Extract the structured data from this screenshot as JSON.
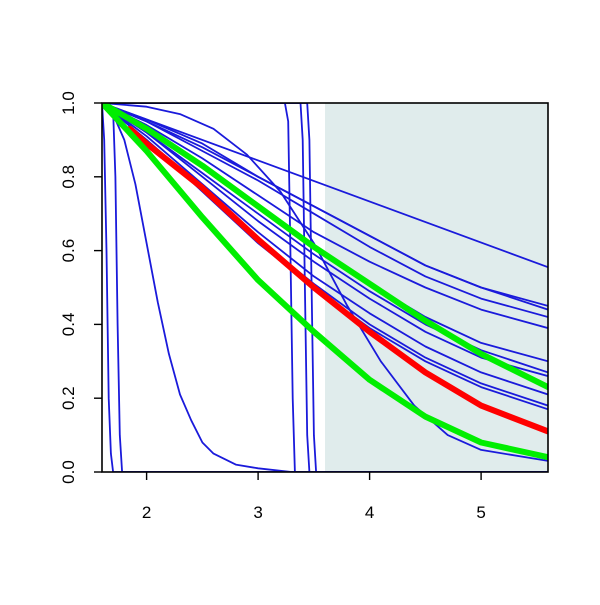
{
  "chart_data": {
    "type": "line",
    "title": "",
    "xlabel": "",
    "ylabel": "",
    "xlim": [
      1.6,
      5.6
    ],
    "ylim": [
      0.0,
      1.0
    ],
    "grid": false,
    "legend": "none",
    "x_ticks": [
      2,
      3,
      4,
      5
    ],
    "x_tick_labels": [
      "2",
      "3",
      "4",
      "5"
    ],
    "y_ticks": [
      0.0,
      0.2,
      0.4,
      0.6,
      0.8,
      1.0
    ],
    "y_tick_labels": [
      "0.0",
      "0.2",
      "0.4",
      "0.6",
      "0.8",
      "1.0"
    ],
    "shaded_region": {
      "x_from": 3.6,
      "x_to": 5.6,
      "color": "#e0ecec"
    },
    "colors": {
      "thin": "#1a1adb",
      "red": "#ff0000",
      "green": "#00ee00",
      "axis": "#000000"
    },
    "series": [
      {
        "color": "blue",
        "width": "thin",
        "x": [
          1.6,
          5.6
        ],
        "y": [
          1.0,
          0.555
        ]
      },
      {
        "color": "blue",
        "width": "thin",
        "x": [
          1.6,
          2.0,
          2.5,
          3.0,
          3.5,
          4.0,
          4.5,
          5.0,
          5.6
        ],
        "y": [
          1.0,
          0.955,
          0.89,
          0.8,
          0.72,
          0.64,
          0.56,
          0.5,
          0.44
        ]
      },
      {
        "color": "blue",
        "width": "thin",
        "x": [
          1.6,
          2.0,
          2.5,
          3.0,
          3.5,
          4.0,
          4.5,
          5.0,
          5.6
        ],
        "y": [
          1.0,
          0.95,
          0.88,
          0.8,
          0.72,
          0.64,
          0.56,
          0.5,
          0.45
        ]
      },
      {
        "color": "blue",
        "width": "thin",
        "x": [
          1.6,
          2.0,
          2.5,
          3.0,
          3.5,
          4.0,
          4.5,
          5.0,
          5.6
        ],
        "y": [
          1.0,
          0.95,
          0.87,
          0.79,
          0.7,
          0.61,
          0.53,
          0.47,
          0.42
        ]
      },
      {
        "color": "blue",
        "width": "thin",
        "x": [
          1.6,
          2.0,
          2.5,
          3.0,
          3.5,
          4.0,
          4.5,
          5.0,
          5.6
        ],
        "y": [
          1.0,
          0.94,
          0.85,
          0.75,
          0.65,
          0.57,
          0.5,
          0.44,
          0.39
        ]
      },
      {
        "color": "blue",
        "width": "thin",
        "x": [
          1.6,
          2.0,
          2.5,
          3.0,
          3.5,
          4.0,
          4.5,
          5.0,
          5.6
        ],
        "y": [
          1.0,
          0.93,
          0.83,
          0.72,
          0.61,
          0.51,
          0.42,
          0.35,
          0.3
        ]
      },
      {
        "color": "blue",
        "width": "thin",
        "x": [
          1.6,
          2.0,
          2.5,
          3.0,
          3.5,
          4.0,
          4.5,
          5.0,
          5.6
        ],
        "y": [
          1.0,
          0.92,
          0.81,
          0.7,
          0.59,
          0.49,
          0.4,
          0.33,
          0.27
        ]
      },
      {
        "color": "blue",
        "width": "thin",
        "x": [
          1.6,
          2.0,
          2.5,
          3.0,
          3.5,
          4.0,
          4.5,
          5.0,
          5.6
        ],
        "y": [
          1.0,
          0.92,
          0.8,
          0.68,
          0.57,
          0.47,
          0.38,
          0.31,
          0.26
        ]
      },
      {
        "color": "blue",
        "width": "thin",
        "x": [
          1.6,
          2.0,
          2.5,
          3.0,
          3.5,
          4.0,
          4.5,
          5.0,
          5.6
        ],
        "y": [
          1.0,
          0.91,
          0.78,
          0.65,
          0.53,
          0.43,
          0.34,
          0.27,
          0.21
        ]
      },
      {
        "color": "blue",
        "width": "thin",
        "x": [
          1.6,
          2.0,
          2.5,
          3.0,
          3.5,
          4.0,
          4.5,
          5.0,
          5.6
        ],
        "y": [
          1.0,
          0.9,
          0.77,
          0.63,
          0.51,
          0.4,
          0.31,
          0.24,
          0.18
        ]
      },
      {
        "color": "blue",
        "width": "thin",
        "x": [
          1.6,
          2.0,
          2.5,
          3.0,
          3.5,
          4.0,
          4.5,
          5.0,
          5.6
        ],
        "y": [
          1.0,
          0.9,
          0.76,
          0.62,
          0.5,
          0.39,
          0.3,
          0.23,
          0.17
        ]
      },
      {
        "color": "blue",
        "width": "thin",
        "x": [
          1.6,
          2.0,
          2.3,
          2.6,
          2.9,
          3.2,
          3.5,
          3.8,
          4.1,
          4.4,
          4.7,
          5.0,
          5.6
        ],
        "y": [
          1.0,
          0.99,
          0.97,
          0.93,
          0.86,
          0.76,
          0.62,
          0.45,
          0.3,
          0.18,
          0.1,
          0.06,
          0.03
        ]
      },
      {
        "color": "blue",
        "width": "thin",
        "x": [
          1.6,
          1.7,
          1.8,
          1.9,
          2.0,
          2.1,
          2.2,
          2.3,
          2.4,
          2.5,
          2.6,
          2.8,
          3.0,
          3.3,
          3.5,
          5.6
        ],
        "y": [
          1.0,
          0.97,
          0.9,
          0.78,
          0.62,
          0.46,
          0.32,
          0.21,
          0.14,
          0.08,
          0.05,
          0.02,
          0.01,
          0.0,
          0.0,
          0.0
        ]
      },
      {
        "color": "blue",
        "width": "thin",
        "x": [
          1.6,
          1.62,
          1.64,
          1.66,
          1.68,
          1.7,
          5.6
        ],
        "y": [
          1.0,
          0.9,
          0.6,
          0.2,
          0.05,
          0.0,
          0.0
        ]
      },
      {
        "color": "blue",
        "width": "thin",
        "x": [
          1.6,
          1.7,
          1.72,
          1.74,
          1.76,
          1.78,
          5.6
        ],
        "y": [
          1.0,
          0.98,
          0.8,
          0.4,
          0.1,
          0.0,
          0.0
        ]
      },
      {
        "color": "blue",
        "width": "thin",
        "x": [
          1.6,
          3.24,
          3.27,
          3.29,
          3.31,
          3.33,
          5.6
        ],
        "y": [
          1.0,
          1.0,
          0.95,
          0.6,
          0.2,
          0.0,
          0.0
        ]
      },
      {
        "color": "blue",
        "width": "thin",
        "x": [
          1.6,
          3.38,
          3.4,
          3.42,
          3.44,
          3.46,
          5.6
        ],
        "y": [
          1.0,
          1.0,
          0.9,
          0.5,
          0.1,
          0.0,
          0.0
        ]
      },
      {
        "color": "blue",
        "width": "thin",
        "x": [
          1.6,
          3.44,
          3.46,
          3.48,
          3.5,
          3.52,
          5.6
        ],
        "y": [
          1.0,
          1.0,
          0.9,
          0.5,
          0.1,
          0.0,
          0.0
        ]
      },
      {
        "color": "green",
        "width": "thick",
        "x": [
          1.6,
          2.0,
          2.5,
          3.0,
          3.5,
          4.0,
          4.5,
          5.0,
          5.6
        ],
        "y": [
          1.0,
          0.93,
          0.83,
          0.72,
          0.61,
          0.51,
          0.41,
          0.32,
          0.23
        ]
      },
      {
        "color": "red",
        "width": "thick",
        "x": [
          1.85,
          2.0,
          2.5,
          3.0,
          3.5,
          4.0,
          4.5,
          5.0,
          5.6
        ],
        "y": [
          0.93,
          0.89,
          0.77,
          0.63,
          0.5,
          0.38,
          0.27,
          0.18,
          0.11
        ]
      },
      {
        "color": "green",
        "width": "thick",
        "x": [
          1.6,
          2.0,
          2.5,
          3.0,
          3.5,
          4.0,
          4.5,
          5.0,
          5.6
        ],
        "y": [
          1.0,
          0.87,
          0.69,
          0.52,
          0.38,
          0.25,
          0.15,
          0.08,
          0.04
        ]
      }
    ]
  }
}
